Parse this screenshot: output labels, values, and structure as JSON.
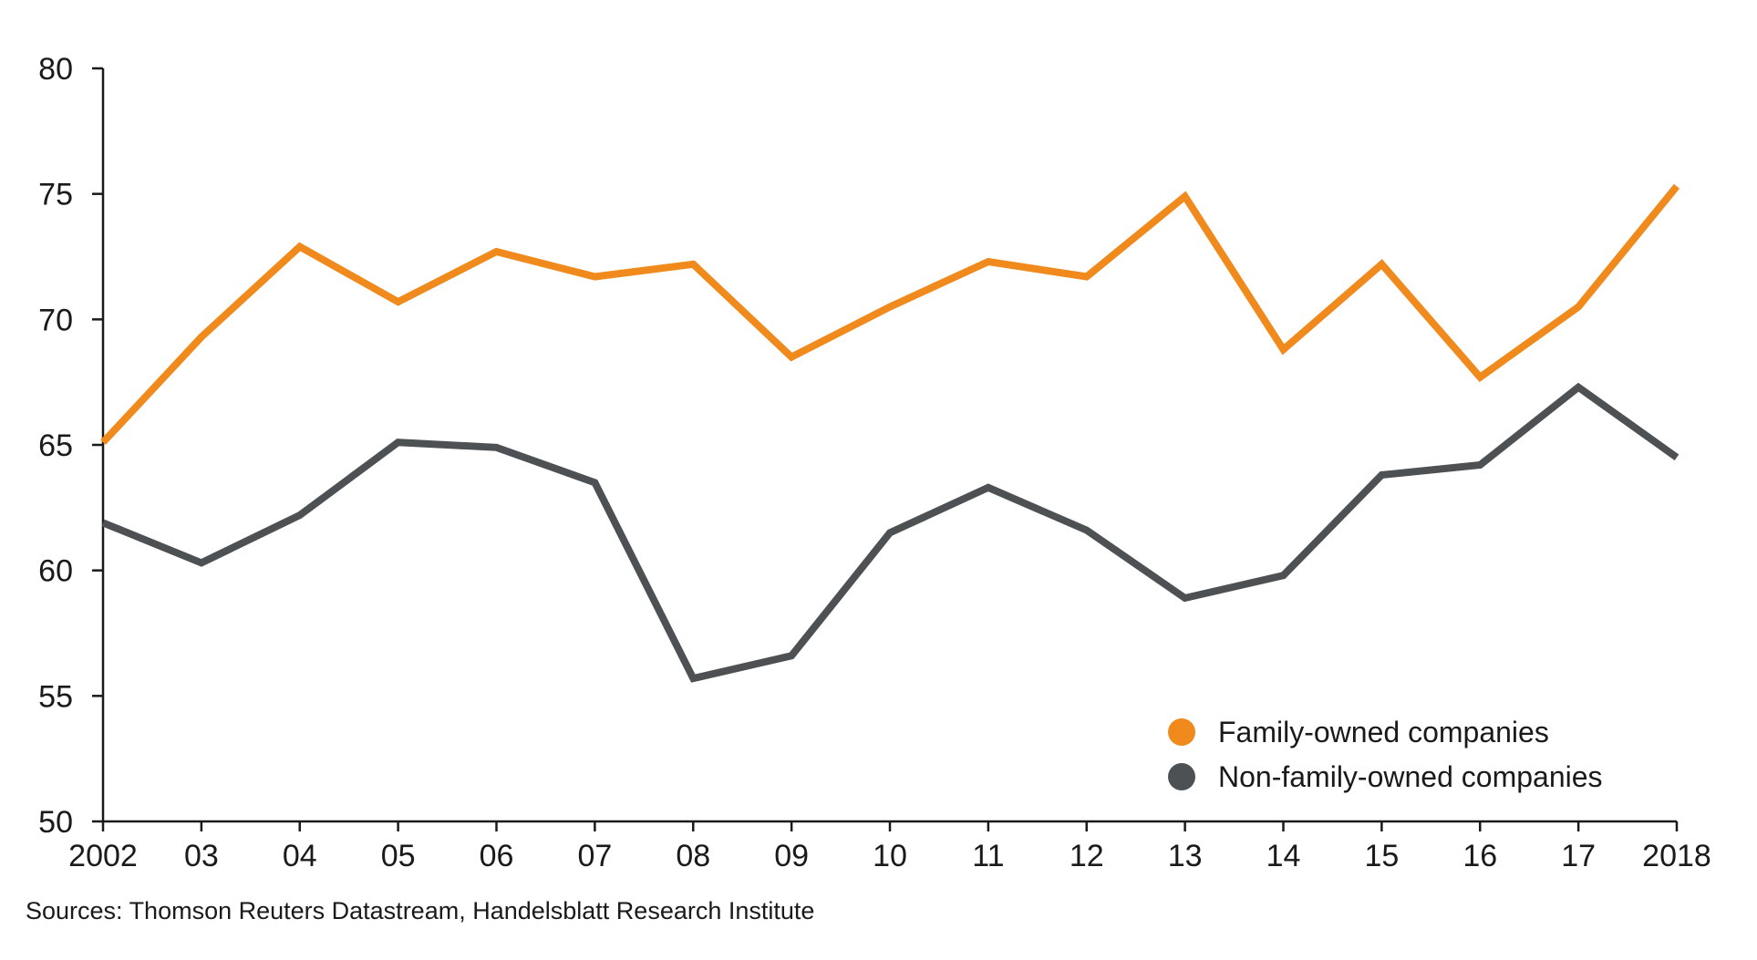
{
  "chart_data": {
    "type": "line",
    "x": [
      "2002",
      "03",
      "04",
      "05",
      "06",
      "07",
      "08",
      "09",
      "10",
      "11",
      "12",
      "13",
      "14",
      "15",
      "16",
      "17",
      "2018"
    ],
    "series": [
      {
        "name": "Family-owned companies",
        "color": "#f08a1c",
        "values": [
          65.1,
          69.3,
          72.9,
          70.7,
          72.7,
          71.7,
          72.2,
          68.5,
          70.5,
          72.3,
          71.7,
          74.9,
          68.8,
          72.2,
          67.7,
          70.5,
          75.3
        ]
      },
      {
        "name": "Non-family-owned companies",
        "color": "#4d5154",
        "values": [
          61.9,
          60.3,
          62.2,
          65.1,
          64.9,
          63.5,
          55.7,
          56.6,
          61.5,
          63.3,
          61.6,
          58.9,
          59.8,
          63.8,
          64.2,
          67.3,
          64.5
        ]
      }
    ],
    "ylim": [
      50,
      80
    ],
    "yticks": [
      50,
      55,
      60,
      65,
      70,
      75,
      80
    ],
    "grid": false,
    "legend_position": "bottom-right",
    "title": "",
    "xlabel": "",
    "ylabel": ""
  },
  "source": "Sources: Thomson Reuters Datastream, Handelsblatt Research Institute"
}
